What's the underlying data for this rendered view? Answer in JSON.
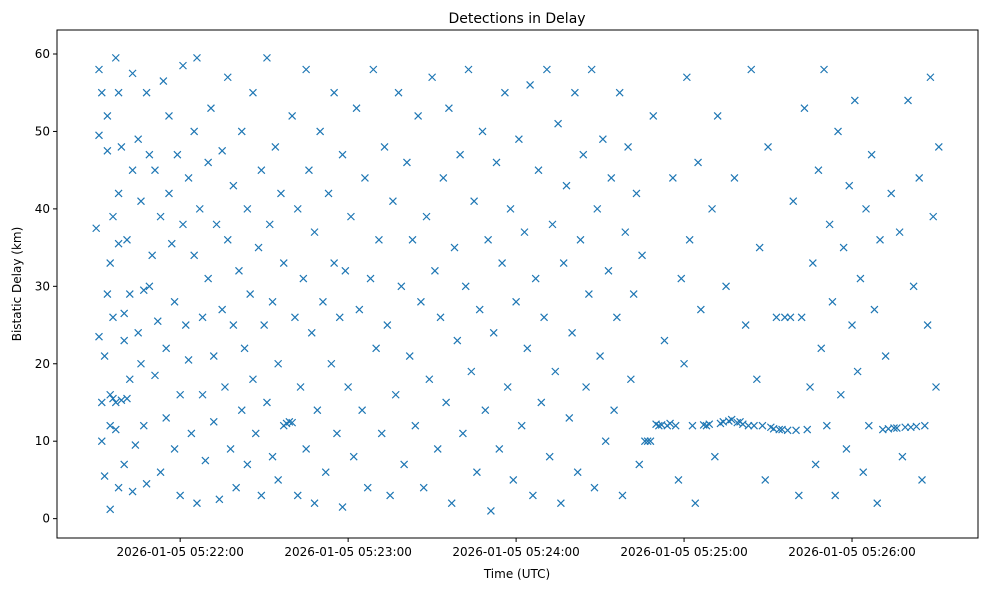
{
  "chart_data": {
    "type": "scatter",
    "title": "Detections in Delay",
    "xlabel": "Time (UTC)",
    "ylabel": "Bistatic Delay (km)",
    "x_units": "seconds after 2026-01-05 05:21:00 UTC",
    "xlim": [
      16,
      345
    ],
    "ylim": [
      -2.5,
      63.1
    ],
    "grid": false,
    "marker": "x",
    "color": "#1f77b4",
    "x_ticks": [
      {
        "value": 60,
        "label": "2026-01-05 05:22:00"
      },
      {
        "value": 120,
        "label": "2026-01-05 05:23:00"
      },
      {
        "value": 180,
        "label": "2026-01-05 05:24:00"
      },
      {
        "value": 240,
        "label": "2026-01-05 05:25:00"
      },
      {
        "value": 300,
        "label": "2026-01-05 05:26:00"
      }
    ],
    "y_ticks": [
      0,
      10,
      20,
      30,
      40,
      50,
      60
    ],
    "points": [
      [
        30,
        37.5
      ],
      [
        31,
        58
      ],
      [
        31,
        49.5
      ],
      [
        31,
        23.5
      ],
      [
        32,
        15
      ],
      [
        32,
        10
      ],
      [
        32,
        55
      ],
      [
        33,
        5.5
      ],
      [
        33,
        21
      ],
      [
        34,
        29
      ],
      [
        34,
        47.5
      ],
      [
        34,
        52
      ],
      [
        35,
        33
      ],
      [
        35,
        16
      ],
      [
        35,
        12
      ],
      [
        35,
        1.2
      ],
      [
        36,
        39
      ],
      [
        36,
        15.5
      ],
      [
        36,
        26
      ],
      [
        37,
        59.5
      ],
      [
        37,
        15
      ],
      [
        37,
        11.5
      ],
      [
        38,
        55
      ],
      [
        38,
        42
      ],
      [
        38,
        35.5
      ],
      [
        38,
        4
      ],
      [
        39,
        15.3
      ],
      [
        39,
        48
      ],
      [
        40,
        23
      ],
      [
        40,
        26.5
      ],
      [
        40,
        7
      ],
      [
        41,
        15.5
      ],
      [
        41,
        36
      ],
      [
        42,
        29
      ],
      [
        42,
        18
      ],
      [
        43,
        57.5
      ],
      [
        43,
        45
      ],
      [
        43,
        3.5
      ],
      [
        44,
        9.5
      ],
      [
        45,
        49
      ],
      [
        45,
        24
      ],
      [
        46,
        41
      ],
      [
        46,
        20
      ],
      [
        47,
        29.5
      ],
      [
        47,
        12
      ],
      [
        48,
        55
      ],
      [
        48,
        4.5
      ],
      [
        49,
        47
      ],
      [
        49,
        30
      ],
      [
        50,
        34
      ],
      [
        51,
        45
      ],
      [
        51,
        18.5
      ],
      [
        52,
        25.5
      ],
      [
        53,
        6
      ],
      [
        53,
        39
      ],
      [
        54,
        56.5
      ],
      [
        55,
        22
      ],
      [
        55,
        13
      ],
      [
        56,
        42
      ],
      [
        56,
        52
      ],
      [
        57,
        35.5
      ],
      [
        58,
        9
      ],
      [
        58,
        28
      ],
      [
        59,
        47
      ],
      [
        60,
        16
      ],
      [
        60,
        3
      ],
      [
        61,
        58.5
      ],
      [
        61,
        38
      ],
      [
        62,
        25
      ],
      [
        63,
        44
      ],
      [
        63,
        20.5
      ],
      [
        64,
        11
      ],
      [
        65,
        50
      ],
      [
        65,
        34
      ],
      [
        66,
        2
      ],
      [
        66,
        59.5
      ],
      [
        67,
        40
      ],
      [
        68,
        26
      ],
      [
        68,
        16
      ],
      [
        69,
        7.5
      ],
      [
        70,
        46
      ],
      [
        70,
        31
      ],
      [
        71,
        53
      ],
      [
        72,
        21
      ],
      [
        72,
        12.5
      ],
      [
        73,
        38
      ],
      [
        74,
        2.5
      ],
      [
        75,
        27
      ],
      [
        75,
        47.5
      ],
      [
        76,
        17
      ],
      [
        77,
        57
      ],
      [
        77,
        36
      ],
      [
        78,
        9
      ],
      [
        79,
        43
      ],
      [
        79,
        25
      ],
      [
        80,
        4
      ],
      [
        81,
        32
      ],
      [
        82,
        50
      ],
      [
        82,
        14
      ],
      [
        83,
        22
      ],
      [
        84,
        40
      ],
      [
        84,
        7
      ],
      [
        85,
        29
      ],
      [
        86,
        55
      ],
      [
        86,
        18
      ],
      [
        87,
        11
      ],
      [
        88,
        35
      ],
      [
        89,
        45
      ],
      [
        89,
        3
      ],
      [
        90,
        25
      ],
      [
        91,
        59.5
      ],
      [
        91,
        15
      ],
      [
        92,
        38
      ],
      [
        93,
        8
      ],
      [
        93,
        28
      ],
      [
        94,
        48
      ],
      [
        95,
        20
      ],
      [
        95,
        5
      ],
      [
        96,
        42
      ],
      [
        97,
        12
      ],
      [
        97,
        33
      ],
      [
        98,
        12.3
      ],
      [
        99,
        12.5
      ],
      [
        100,
        12.4
      ],
      [
        100,
        52
      ],
      [
        101,
        26
      ],
      [
        102,
        40
      ],
      [
        102,
        3
      ],
      [
        103,
        17
      ],
      [
        104,
        31
      ],
      [
        105,
        58
      ],
      [
        105,
        9
      ],
      [
        106,
        45
      ],
      [
        107,
        24
      ],
      [
        108,
        37
      ],
      [
        108,
        2
      ],
      [
        109,
        14
      ],
      [
        110,
        50
      ],
      [
        111,
        28
      ],
      [
        112,
        6
      ],
      [
        113,
        42
      ],
      [
        114,
        20
      ],
      [
        115,
        33
      ],
      [
        115,
        55
      ],
      [
        116,
        11
      ],
      [
        117,
        26
      ],
      [
        118,
        47
      ],
      [
        118,
        1.5
      ],
      [
        119,
        32
      ],
      [
        120,
        17
      ],
      [
        121,
        39
      ],
      [
        122,
        8
      ],
      [
        123,
        53
      ],
      [
        124,
        27
      ],
      [
        125,
        14
      ],
      [
        126,
        44
      ],
      [
        127,
        4
      ],
      [
        128,
        31
      ],
      [
        129,
        58
      ],
      [
        130,
        22
      ],
      [
        131,
        36
      ],
      [
        132,
        11
      ],
      [
        133,
        48
      ],
      [
        134,
        25
      ],
      [
        135,
        3
      ],
      [
        136,
        41
      ],
      [
        137,
        16
      ],
      [
        138,
        55
      ],
      [
        139,
        30
      ],
      [
        140,
        7
      ],
      [
        141,
        46
      ],
      [
        142,
        21
      ],
      [
        143,
        36
      ],
      [
        144,
        12
      ],
      [
        145,
        52
      ],
      [
        146,
        28
      ],
      [
        147,
        4
      ],
      [
        148,
        39
      ],
      [
        149,
        18
      ],
      [
        150,
        57
      ],
      [
        151,
        32
      ],
      [
        152,
        9
      ],
      [
        153,
        26
      ],
      [
        154,
        44
      ],
      [
        155,
        15
      ],
      [
        156,
        53
      ],
      [
        157,
        2
      ],
      [
        158,
        35
      ],
      [
        159,
        23
      ],
      [
        160,
        47
      ],
      [
        161,
        11
      ],
      [
        162,
        30
      ],
      [
        163,
        58
      ],
      [
        164,
        19
      ],
      [
        165,
        41
      ],
      [
        166,
        6
      ],
      [
        167,
        27
      ],
      [
        168,
        50
      ],
      [
        169,
        14
      ],
      [
        170,
        36
      ],
      [
        171,
        1
      ],
      [
        172,
        24
      ],
      [
        173,
        46
      ],
      [
        174,
        9
      ],
      [
        175,
        33
      ],
      [
        176,
        55
      ],
      [
        177,
        17
      ],
      [
        178,
        40
      ],
      [
        179,
        5
      ],
      [
        180,
        28
      ],
      [
        181,
        49
      ],
      [
        182,
        12
      ],
      [
        183,
        37
      ],
      [
        184,
        22
      ],
      [
        185,
        56
      ],
      [
        186,
        3
      ],
      [
        187,
        31
      ],
      [
        188,
        45
      ],
      [
        189,
        15
      ],
      [
        190,
        26
      ],
      [
        191,
        58
      ],
      [
        192,
        8
      ],
      [
        193,
        38
      ],
      [
        194,
        19
      ],
      [
        195,
        51
      ],
      [
        196,
        2
      ],
      [
        197,
        33
      ],
      [
        198,
        43
      ],
      [
        199,
        13
      ],
      [
        200,
        24
      ],
      [
        201,
        55
      ],
      [
        202,
        6
      ],
      [
        203,
        36
      ],
      [
        204,
        47
      ],
      [
        205,
        17
      ],
      [
        206,
        29
      ],
      [
        207,
        58
      ],
      [
        208,
        4
      ],
      [
        209,
        40
      ],
      [
        210,
        21
      ],
      [
        211,
        49
      ],
      [
        212,
        10
      ],
      [
        213,
        32
      ],
      [
        214,
        44
      ],
      [
        215,
        14
      ],
      [
        216,
        26
      ],
      [
        217,
        55
      ],
      [
        218,
        3
      ],
      [
        219,
        37
      ],
      [
        220,
        48
      ],
      [
        221,
        18
      ],
      [
        222,
        29
      ],
      [
        223,
        42
      ],
      [
        224,
        7
      ],
      [
        225,
        34
      ],
      [
        226,
        10
      ],
      [
        227,
        10
      ],
      [
        228,
        10
      ],
      [
        229,
        52
      ],
      [
        230,
        12.2
      ],
      [
        231,
        12
      ],
      [
        232,
        12.1
      ],
      [
        233,
        23
      ],
      [
        234,
        12
      ],
      [
        235,
        12.3
      ],
      [
        236,
        44
      ],
      [
        237,
        12
      ],
      [
        238,
        5
      ],
      [
        239,
        31
      ],
      [
        240,
        20
      ],
      [
        241,
        57
      ],
      [
        242,
        36
      ],
      [
        243,
        12
      ],
      [
        244,
        2
      ],
      [
        245,
        46
      ],
      [
        246,
        27
      ],
      [
        247,
        12.1
      ],
      [
        248,
        12
      ],
      [
        249,
        12.2
      ],
      [
        250,
        40
      ],
      [
        251,
        8
      ],
      [
        252,
        52
      ],
      [
        253,
        12.3
      ],
      [
        254,
        12.5
      ],
      [
        255,
        30
      ],
      [
        256,
        12.6
      ],
      [
        257,
        12.8
      ],
      [
        258,
        44
      ],
      [
        259,
        12.4
      ],
      [
        260,
        12.5
      ],
      [
        261,
        12.2
      ],
      [
        262,
        25
      ],
      [
        263,
        12
      ],
      [
        264,
        58
      ],
      [
        265,
        12
      ],
      [
        266,
        18
      ],
      [
        267,
        35
      ],
      [
        268,
        12
      ],
      [
        269,
        5
      ],
      [
        270,
        48
      ],
      [
        271,
        11.8
      ],
      [
        272,
        11.6
      ],
      [
        273,
        26
      ],
      [
        274,
        11.5
      ],
      [
        275,
        11.5
      ],
      [
        276,
        26
      ],
      [
        277,
        11.4
      ],
      [
        278,
        26
      ],
      [
        279,
        41
      ],
      [
        280,
        11.4
      ],
      [
        281,
        3
      ],
      [
        282,
        26
      ],
      [
        283,
        53
      ],
      [
        284,
        11.5
      ],
      [
        285,
        17
      ],
      [
        286,
        33
      ],
      [
        287,
        7
      ],
      [
        288,
        45
      ],
      [
        289,
        22
      ],
      [
        290,
        58
      ],
      [
        291,
        12
      ],
      [
        292,
        38
      ],
      [
        293,
        28
      ],
      [
        294,
        3
      ],
      [
        295,
        50
      ],
      [
        296,
        16
      ],
      [
        297,
        35
      ],
      [
        298,
        9
      ],
      [
        299,
        43
      ],
      [
        300,
        25
      ],
      [
        301,
        54
      ],
      [
        302,
        19
      ],
      [
        303,
        31
      ],
      [
        304,
        6
      ],
      [
        305,
        40
      ],
      [
        306,
        12
      ],
      [
        307,
        47
      ],
      [
        308,
        27
      ],
      [
        309,
        2
      ],
      [
        310,
        36
      ],
      [
        311,
        11.5
      ],
      [
        312,
        21
      ],
      [
        313,
        11.6
      ],
      [
        314,
        42
      ],
      [
        315,
        11.7
      ],
      [
        316,
        11.7
      ],
      [
        317,
        37
      ],
      [
        318,
        8
      ],
      [
        319,
        11.8
      ],
      [
        320,
        54
      ],
      [
        321,
        11.8
      ],
      [
        322,
        30
      ],
      [
        323,
        11.9
      ],
      [
        324,
        44
      ],
      [
        325,
        5
      ],
      [
        326,
        12
      ],
      [
        327,
        25
      ],
      [
        328,
        57
      ],
      [
        329,
        39
      ],
      [
        330,
        17
      ],
      [
        331,
        48
      ]
    ]
  }
}
